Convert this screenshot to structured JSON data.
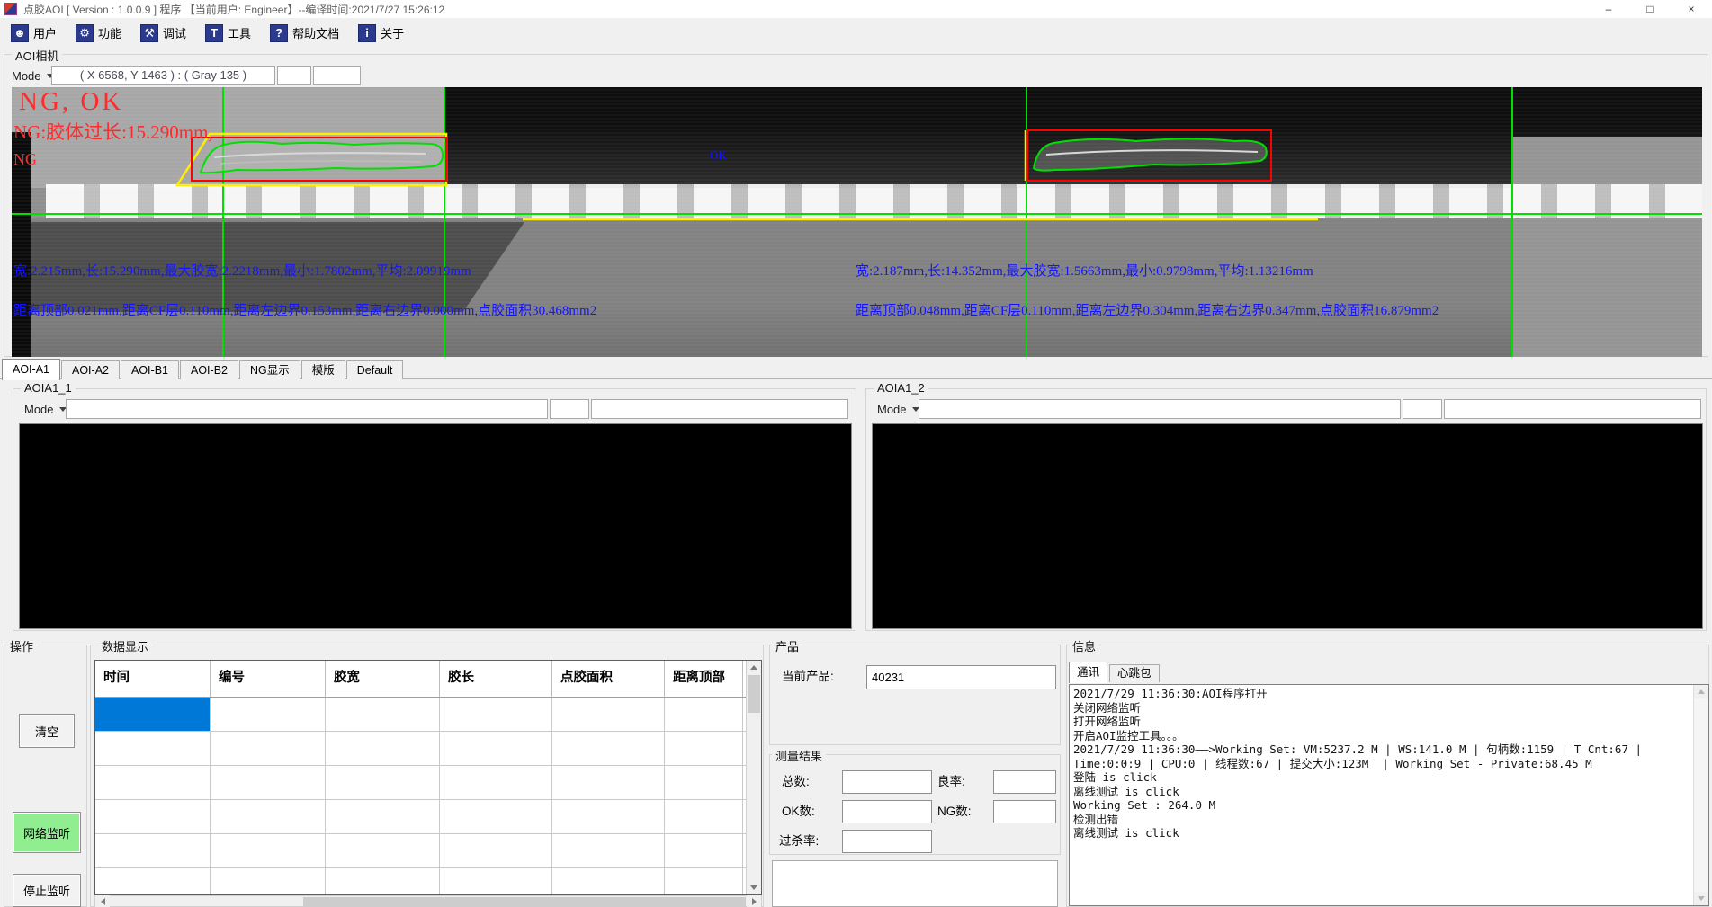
{
  "colors": {
    "selection_blue": "#0078d7",
    "listen_button_green": "#90ee90",
    "overlay_red": "#ff2a2a",
    "overlay_blue": "#1414ff",
    "overlay_green": "#00e000",
    "overlay_yellow": "#ffee00",
    "toolbar_icon_navy": "#2b3a8f"
  },
  "window": {
    "title": "点胶AOI [ Version : 1.0.0.9 ] 程序 【当前用户: Engineer】--编译时间:2021/7/27 15:26:12",
    "controls": {
      "minimize": "–",
      "maximize": "□",
      "close": "×"
    }
  },
  "toolbar": {
    "items": [
      {
        "id": "user",
        "label": "用户",
        "icon": "user-icon",
        "glyph": "☻"
      },
      {
        "id": "function",
        "label": "功能",
        "icon": "gear-icon",
        "glyph": "⚙"
      },
      {
        "id": "debug",
        "label": "调试",
        "icon": "wrench-icon",
        "glyph": "⚒"
      },
      {
        "id": "tools",
        "label": "工具",
        "icon": "tools-icon",
        "glyph": "T"
      },
      {
        "id": "help",
        "label": "帮助文档",
        "icon": "help-icon",
        "glyph": "?"
      },
      {
        "id": "about",
        "label": "关于",
        "icon": "info-icon",
        "glyph": "i"
      }
    ]
  },
  "camera": {
    "group_label": "AOI相机",
    "mode_label": "Mode",
    "coords_value": "( X 6568, Y 1463 ) : ( Gray 135 )",
    "overlay": {
      "result": "NG, OK",
      "ng_reason": "NG:胶体过长:15.290mm,",
      "ng_flag": "NG",
      "ok_small": "OK",
      "left_line1": "宽:2.215mm,长:15.290mm,最大胶宽:2.2218mm,最小:1.7802mm,平均:2.09919mm",
      "left_line2": "距离顶部0.021mm,距离CF层0.110mm,距离左边界0.153mm,距离右边界0.000mm,点胶面积30.468mm2",
      "right_line1": "宽:2.187mm,长:14.352mm,最大胶宽:1.5663mm,最小:0.9798mm,平均:1.13216mm",
      "right_line2": "距离顶部0.048mm,距离CF层0.110mm,距离左边界0.304mm,距离右边界0.347mm,点胶面积16.879mm2"
    }
  },
  "tabs": {
    "items": [
      "AOI-A1",
      "AOI-A2",
      "AOI-B1",
      "AOI-B2",
      "NG显示",
      "模版",
      "Default"
    ],
    "active": "AOI-A1"
  },
  "panels": [
    {
      "group_label": "AOIA1_1",
      "mode_label": "Mode"
    },
    {
      "group_label": "AOIA1_2",
      "mode_label": "Mode"
    }
  ],
  "operation": {
    "group_label": "操作",
    "clear_label": "清空",
    "network_listen_label": "网络监听",
    "stop_listen_label": "停止监听"
  },
  "data_table": {
    "group_label": "数据显示",
    "columns": [
      "时间",
      "编号",
      "胶宽",
      "胶长",
      "点胶面积",
      "距离顶部"
    ],
    "visible_rows": 6
  },
  "product": {
    "group_label": "产品",
    "current_label": "当前产品:",
    "current_value": "40231"
  },
  "results": {
    "group_label": "测量结果",
    "fields": [
      {
        "label": "总数:",
        "value": ""
      },
      {
        "label": "良率:",
        "value": ""
      },
      {
        "label": "OK数:",
        "value": ""
      },
      {
        "label": "NG数:",
        "value": ""
      },
      {
        "label": "过杀率:",
        "value": ""
      }
    ]
  },
  "info": {
    "group_label": "信息",
    "tabs": [
      "通讯",
      "心跳包"
    ],
    "active": "通讯",
    "log_lines": [
      "2021/7/29 11:36:30:AOI程序打开",
      "关闭网络监听",
      "打开网络监听",
      "开启AOI监控工具。。。",
      "2021/7/29 11:36:30——>Working Set: VM:5237.2 M | WS:141.0 M | 句柄数:1159 | T Cnt:67 |",
      "Time:0:0:9 | CPU:0 | 线程数:67 | 提交大小:123M  | Working Set - Private:68.45 M",
      "登陆 is click",
      "离线测试 is click",
      "Working Set : 264.0 M",
      "检测出错",
      "离线测试 is click"
    ]
  }
}
